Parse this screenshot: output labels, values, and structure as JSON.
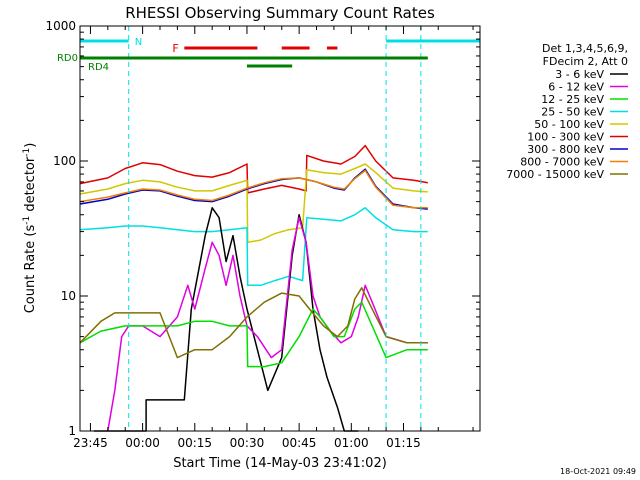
{
  "chart_data": {
    "type": "line",
    "title": "RHESSI Observing Summary Count Rates",
    "xlabel": "Start Time (14-May-03 23:41:02)",
    "ylabel_main": "Count Rate (s",
    "ylabel_sup1": "-1",
    "ylabel_mid": " detector",
    "ylabel_sup2": "-1",
    "ylabel_end": ")",
    "y_scale": "log",
    "ylim": [
      1,
      1000
    ],
    "xlim_minutes": [
      -18,
      97
    ],
    "x_ticks": [
      {
        "label": "23:45",
        "t": -15
      },
      {
        "label": "00:00",
        "t": 0
      },
      {
        "label": "00:15",
        "t": 15
      },
      {
        "label": "00:30",
        "t": 30
      },
      {
        "label": "00:45",
        "t": 45
      },
      {
        "label": "01:00",
        "t": 60
      },
      {
        "label": "01:15",
        "t": 75
      }
    ],
    "y_ticks": [
      {
        "label": "1",
        "v": 1
      },
      {
        "label": "10",
        "v": 10
      },
      {
        "label": "100",
        "v": 100
      },
      {
        "label": "1000",
        "v": 1000
      }
    ],
    "legend": {
      "header": [
        "Det 1,3,4,5,6,9,",
        "FDecim 2, Att 0"
      ],
      "entries": [
        {
          "label": "3 - 6 keV",
          "color": "#000000"
        },
        {
          "label": "6 - 12 keV",
          "color": "#e000e0"
        },
        {
          "label": "12 - 25 keV",
          "color": "#00e000"
        },
        {
          "label": "25 - 50 keV",
          "color": "#00e0e0"
        },
        {
          "label": "50 - 100 keV",
          "color": "#d0c800"
        },
        {
          "label": "100 - 300 keV",
          "color": "#e00000"
        },
        {
          "label": "300 - 800 keV",
          "color": "#0000d0"
        },
        {
          "label": "800 - 7000 keV",
          "color": "#f08000"
        },
        {
          "label": "7000 - 15000 keV",
          "color": "#807000"
        }
      ]
    },
    "flags": {
      "n_label": "N",
      "f_label": "F",
      "rd0_label": "RD0",
      "rd4_label": "RD4",
      "night_segments": [
        [
          -18,
          -4
        ],
        [
          70,
          97
        ]
      ],
      "night_boundaries": [
        -4,
        70,
        80
      ],
      "flare_segments": [
        [
          12,
          33
        ],
        [
          40,
          48
        ],
        [
          53,
          56
        ]
      ],
      "rd0_segments": [
        [
          -18,
          30
        ],
        [
          30,
          53
        ],
        [
          53,
          82
        ]
      ],
      "rd4_segments": [
        [
          30,
          43
        ]
      ]
    },
    "series": [
      {
        "name": "100 - 300 keV",
        "color": "#e00000",
        "points": [
          [
            -18,
            68
          ],
          [
            -10,
            75
          ],
          [
            -5,
            88
          ],
          [
            0,
            97
          ],
          [
            5,
            94
          ],
          [
            10,
            84
          ],
          [
            15,
            78
          ],
          [
            20,
            76
          ],
          [
            25,
            82
          ],
          [
            30,
            95
          ],
          [
            30.2,
            58
          ],
          [
            35,
            62
          ],
          [
            40,
            66
          ],
          [
            45,
            62
          ],
          [
            47,
            60
          ],
          [
            47.2,
            110
          ],
          [
            52,
            100
          ],
          [
            57,
            95
          ],
          [
            61,
            108
          ],
          [
            64,
            130
          ],
          [
            67,
            100
          ],
          [
            72,
            75
          ],
          [
            78,
            72
          ],
          [
            82,
            69
          ]
        ]
      },
      {
        "name": "50 - 100 keV",
        "color": "#d0c800",
        "points": [
          [
            -18,
            57
          ],
          [
            -10,
            62
          ],
          [
            -5,
            68
          ],
          [
            0,
            72
          ],
          [
            5,
            70
          ],
          [
            10,
            64
          ],
          [
            15,
            60
          ],
          [
            20,
            60
          ],
          [
            25,
            66
          ],
          [
            30,
            72
          ],
          [
            30.2,
            25
          ],
          [
            34,
            26
          ],
          [
            38,
            29
          ],
          [
            42,
            31
          ],
          [
            46,
            32
          ],
          [
            47.2,
            86
          ],
          [
            52,
            82
          ],
          [
            57,
            80
          ],
          [
            61,
            88
          ],
          [
            64,
            95
          ],
          [
            67,
            82
          ],
          [
            72,
            63
          ],
          [
            78,
            60
          ],
          [
            82,
            59
          ]
        ]
      },
      {
        "name": "300 - 800 keV",
        "color": "#0000d0",
        "points": [
          [
            -18,
            48
          ],
          [
            -10,
            52
          ],
          [
            -5,
            57
          ],
          [
            0,
            61
          ],
          [
            5,
            60
          ],
          [
            10,
            55
          ],
          [
            15,
            51
          ],
          [
            20,
            50
          ],
          [
            25,
            55
          ],
          [
            30,
            62
          ],
          [
            35,
            68
          ],
          [
            40,
            73
          ],
          [
            45,
            75
          ],
          [
            50,
            70
          ],
          [
            55,
            63
          ],
          [
            58,
            61
          ],
          [
            61,
            75
          ],
          [
            64,
            87
          ],
          [
            67,
            65
          ],
          [
            72,
            48
          ],
          [
            78,
            45
          ],
          [
            82,
            44
          ]
        ]
      },
      {
        "name": "800 - 7000 keV",
        "color": "#f08000",
        "points": [
          [
            -18,
            50
          ],
          [
            -10,
            54
          ],
          [
            -5,
            58
          ],
          [
            0,
            62
          ],
          [
            5,
            61
          ],
          [
            10,
            56
          ],
          [
            15,
            52
          ],
          [
            20,
            51
          ],
          [
            25,
            56
          ],
          [
            30,
            63
          ],
          [
            35,
            69
          ],
          [
            40,
            74
          ],
          [
            45,
            75
          ],
          [
            50,
            70
          ],
          [
            55,
            64
          ],
          [
            58,
            62
          ],
          [
            61,
            74
          ],
          [
            64,
            85
          ],
          [
            67,
            64
          ],
          [
            72,
            47
          ],
          [
            78,
            45
          ],
          [
            82,
            45
          ]
        ]
      },
      {
        "name": "25 - 50 keV",
        "color": "#00e0e0",
        "points": [
          [
            -18,
            31
          ],
          [
            -10,
            32
          ],
          [
            -5,
            33
          ],
          [
            0,
            33
          ],
          [
            5,
            32
          ],
          [
            10,
            31
          ],
          [
            15,
            30
          ],
          [
            20,
            30
          ],
          [
            25,
            31
          ],
          [
            30,
            32
          ],
          [
            30.2,
            12
          ],
          [
            34,
            12
          ],
          [
            38,
            13
          ],
          [
            42,
            14
          ],
          [
            46,
            13
          ],
          [
            47.2,
            38
          ],
          [
            52,
            37
          ],
          [
            57,
            36
          ],
          [
            61,
            40
          ],
          [
            64,
            45
          ],
          [
            67,
            38
          ],
          [
            72,
            31
          ],
          [
            78,
            30
          ],
          [
            82,
            30
          ]
        ]
      },
      {
        "name": "3 - 6 keV",
        "color": "#000000",
        "points": [
          [
            -14,
            1
          ],
          [
            1,
            1
          ],
          [
            1,
            1.7
          ],
          [
            12,
            1.7
          ],
          [
            14,
            8
          ],
          [
            16,
            15
          ],
          [
            18,
            28
          ],
          [
            20,
            45
          ],
          [
            22,
            38
          ],
          [
            24,
            18
          ],
          [
            26,
            28
          ],
          [
            28,
            14
          ],
          [
            30,
            8
          ],
          [
            33,
            4
          ],
          [
            36,
            2
          ],
          [
            40,
            3.5
          ],
          [
            43,
            20
          ],
          [
            45,
            40
          ],
          [
            47,
            25
          ],
          [
            49,
            8
          ],
          [
            51,
            4
          ],
          [
            53,
            2.5
          ],
          [
            56,
            1.5
          ],
          [
            58,
            1
          ],
          [
            62,
            1
          ]
        ]
      },
      {
        "name": "6 - 12 keV",
        "color": "#e000e0",
        "points": [
          [
            -10,
            1
          ],
          [
            -8,
            2
          ],
          [
            -6,
            5
          ],
          [
            -4,
            6
          ],
          [
            0,
            6
          ],
          [
            5,
            5
          ],
          [
            10,
            7
          ],
          [
            13,
            12
          ],
          [
            15,
            8
          ],
          [
            18,
            16
          ],
          [
            20,
            25
          ],
          [
            22,
            20
          ],
          [
            24,
            12
          ],
          [
            26,
            20
          ],
          [
            28,
            10
          ],
          [
            30,
            6
          ],
          [
            33,
            5
          ],
          [
            37,
            3.5
          ],
          [
            40,
            4
          ],
          [
            43,
            22
          ],
          [
            45,
            38
          ],
          [
            47,
            25
          ],
          [
            49,
            10
          ],
          [
            51,
            7
          ],
          [
            54,
            5.5
          ],
          [
            57,
            4.5
          ],
          [
            60,
            5
          ],
          [
            62,
            7
          ],
          [
            64,
            12
          ],
          [
            66,
            9
          ],
          [
            70,
            5
          ],
          [
            76,
            4.5
          ],
          [
            82,
            4.5
          ]
        ]
      },
      {
        "name": "12 - 25 keV",
        "color": "#00e000",
        "points": [
          [
            -18,
            4.5
          ],
          [
            -12,
            5.5
          ],
          [
            -5,
            6
          ],
          [
            0,
            6
          ],
          [
            5,
            6
          ],
          [
            10,
            6
          ],
          [
            15,
            6.5
          ],
          [
            20,
            6.5
          ],
          [
            25,
            6
          ],
          [
            30,
            6
          ],
          [
            30.2,
            3
          ],
          [
            35,
            3
          ],
          [
            40,
            3.2
          ],
          [
            45,
            5
          ],
          [
            49,
            8
          ],
          [
            51,
            7
          ],
          [
            55,
            5
          ],
          [
            58,
            5
          ],
          [
            61,
            8
          ],
          [
            63,
            9
          ],
          [
            66,
            6
          ],
          [
            70,
            3.5
          ],
          [
            76,
            4
          ],
          [
            82,
            4
          ]
        ]
      },
      {
        "name": "7000 - 15000 keV",
        "color": "#807000",
        "points": [
          [
            -18,
            4.5
          ],
          [
            -12,
            6.5
          ],
          [
            -8,
            7.5
          ],
          [
            0,
            7.5
          ],
          [
            5,
            7.5
          ],
          [
            10,
            3.5
          ],
          [
            15,
            4
          ],
          [
            20,
            4
          ],
          [
            25,
            5
          ],
          [
            30,
            7
          ],
          [
            35,
            9
          ],
          [
            40,
            10.5
          ],
          [
            45,
            10
          ],
          [
            48,
            8
          ],
          [
            52,
            6
          ],
          [
            56,
            5
          ],
          [
            59,
            6
          ],
          [
            61,
            9.5
          ],
          [
            63,
            11.5
          ],
          [
            66,
            8
          ],
          [
            70,
            5
          ],
          [
            76,
            4.5
          ],
          [
            82,
            4.5
          ]
        ]
      }
    ]
  },
  "footer": {
    "timestamp": "18-Oct-2021 09:49"
  }
}
